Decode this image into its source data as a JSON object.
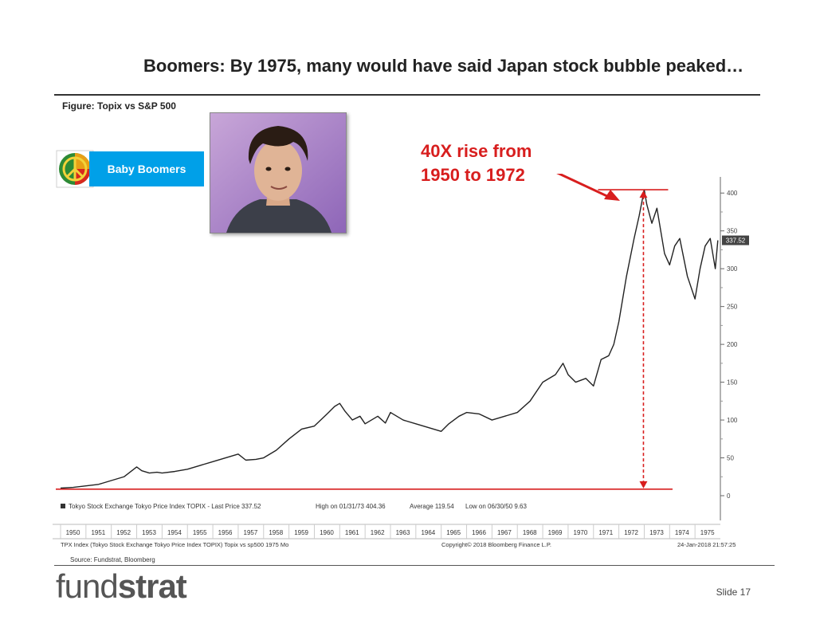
{
  "slide": {
    "title": "Boomers: By 1975, many would have said Japan stock bubble peaked…",
    "figure_label": "Figure: Topix vs S&P 500",
    "badge_label": "Baby Boomers",
    "annotation_line1": "40X rise from",
    "annotation_line2": "1950 to 1972",
    "source": "Source: Fundstrat, Bloomberg",
    "logo_light": "fund",
    "logo_bold": "strat",
    "slide_number": "Slide  17",
    "colors": {
      "accent_blue": "#00a0e8",
      "annotation_red": "#d81e1e",
      "series_line": "#222222"
    },
    "icons": [
      "peace-sign-icon",
      "portrait-photo"
    ]
  },
  "chart_data": {
    "type": "line",
    "legend": "Tokyo Stock Exchange Tokyo Price Index TOPIX - Last Price 337.52",
    "legend_high": "High on 01/31/73 404.36",
    "legend_avg": "Average 119.54",
    "legend_low": "Low on 06/30/50 9.63",
    "footer_left": "TPX Index (Tokyo Stock Exchange Tokyo Price Index TOPIX) Topix vs sp500 1975  Mo",
    "footer_mid": "Copyright© 2018 Bloomberg Finance L.P.",
    "footer_right": "24-Jan-2018  21:57:25",
    "last_price_label": "337.52",
    "x_tick_labels": [
      "1950",
      "1951",
      "1952",
      "1953",
      "1954",
      "1955",
      "1956",
      "1957",
      "1958",
      "1959",
      "1960",
      "1961",
      "1962",
      "1963",
      "1964",
      "1965",
      "1966",
      "1967",
      "1968",
      "1969",
      "1970",
      "1971",
      "1972",
      "1973",
      "1974",
      "1975"
    ],
    "y_tick_labels": [
      "0",
      "50",
      "100",
      "150",
      "200",
      "250",
      "300",
      "350",
      "400"
    ],
    "ylim": [
      0,
      415
    ],
    "xlim": [
      1950.0,
      1976.0
    ],
    "series": [
      {
        "name": "Tokyo Stock Exchange Tokyo Price Index TOPIX",
        "x": [
          1950.0,
          1950.5,
          1951.0,
          1951.5,
          1952.0,
          1952.5,
          1953.0,
          1953.2,
          1953.5,
          1953.8,
          1954.0,
          1954.5,
          1955.0,
          1955.5,
          1956.0,
          1956.5,
          1957.0,
          1957.3,
          1957.7,
          1958.0,
          1958.5,
          1959.0,
          1959.5,
          1960.0,
          1960.5,
          1960.8,
          1961.0,
          1961.2,
          1961.5,
          1961.8,
          1962.0,
          1962.5,
          1962.8,
          1963.0,
          1963.5,
          1964.0,
          1964.5,
          1965.0,
          1965.3,
          1965.7,
          1966.0,
          1966.5,
          1967.0,
          1967.5,
          1968.0,
          1968.5,
          1969.0,
          1969.5,
          1969.8,
          1970.0,
          1970.3,
          1970.7,
          1971.0,
          1971.3,
          1971.6,
          1971.8,
          1972.0,
          1972.3,
          1972.6,
          1972.8,
          1973.0,
          1973.1,
          1973.3,
          1973.5,
          1973.8,
          1974.0,
          1974.2,
          1974.4,
          1974.7,
          1975.0,
          1975.2,
          1975.4,
          1975.6,
          1975.8,
          1975.9
        ],
        "values": [
          10.0,
          11.0,
          13.0,
          15.0,
          20.0,
          25.0,
          38.0,
          33.0,
          30.0,
          31.0,
          30.0,
          32.0,
          35.0,
          40.0,
          45.0,
          50.0,
          55.0,
          47.0,
          48.0,
          50.0,
          60.0,
          75.0,
          88.0,
          92.0,
          108.0,
          118.0,
          122.0,
          112.0,
          100.0,
          105.0,
          95.0,
          105.0,
          96.0,
          110.0,
          100.0,
          95.0,
          90.0,
          85.0,
          95.0,
          105.0,
          110.0,
          108.0,
          100.0,
          105.0,
          110.0,
          125.0,
          150.0,
          160.0,
          175.0,
          160.0,
          150.0,
          155.0,
          145.0,
          180.0,
          185.0,
          200.0,
          230.0,
          290.0,
          340.0,
          370.0,
          404.36,
          385.0,
          360.0,
          380.0,
          320.0,
          305.0,
          330.0,
          340.0,
          290.0,
          260.0,
          300.0,
          330.0,
          340.0,
          300.0,
          337.52
        ]
      }
    ],
    "annotation_rise": "40X rise from 1950 to 1972"
  }
}
